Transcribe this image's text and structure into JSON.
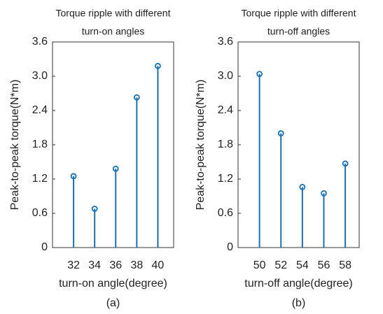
{
  "chart_data": [
    {
      "type": "stem",
      "title": [
        "Torque ripple with different",
        "turn-on angles"
      ],
      "x": [
        32,
        34,
        36,
        38,
        40
      ],
      "values": [
        1.25,
        0.68,
        1.38,
        2.63,
        3.18
      ],
      "color": "#1a6fb0",
      "xlim": [
        30,
        41.5
      ],
      "xticks": [
        32,
        34,
        36,
        38,
        40
      ],
      "ylim": [
        0,
        3.6
      ],
      "yticks": [
        0,
        0.6,
        1.2,
        1.8,
        2.4,
        {
          "value": 3,
          "label": "3.0"
        },
        3.6
      ],
      "ylabel": "Peak-to-peak torque(N*m)",
      "xlabel": "turn-on angle(degree)",
      "caption": "(a)"
    },
    {
      "type": "stem",
      "title": [
        "Torque ripple with different",
        "turn-off angles"
      ],
      "x": [
        50,
        52,
        54,
        56,
        58
      ],
      "values": [
        3.04,
        2.0,
        1.06,
        0.95,
        1.47
      ],
      "color": "#1a6fb0",
      "xlim": [
        48,
        59.3
      ],
      "xticks": [
        50,
        52,
        54,
        56,
        58
      ],
      "ylim": [
        0,
        3.6
      ],
      "yticks": [
        0,
        0.6,
        1.2,
        1.8,
        2.4,
        {
          "value": 3,
          "label": "3.0"
        },
        3.6
      ],
      "ylabel": "Peak-to-peak torque(N*m)",
      "xlabel": "turn-off angle(degree)",
      "caption": "(b)"
    }
  ]
}
